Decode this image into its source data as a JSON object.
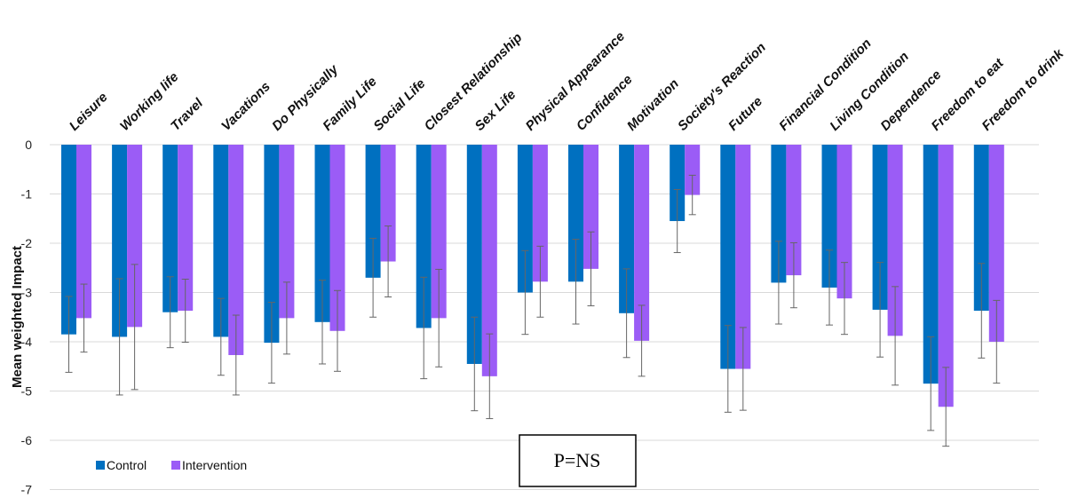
{
  "chart_data": {
    "type": "bar",
    "title": "",
    "xlabel": "",
    "ylabel": "Mean weighted Impact",
    "ylim": [
      -7,
      0
    ],
    "yticks": [
      0,
      -1,
      -2,
      -3,
      -4,
      -5,
      -6,
      -7
    ],
    "grid": true,
    "legend_position": "bottom-left",
    "categories": [
      "Leisure",
      "Working life",
      "Travel",
      "Vacations",
      "Do Physically",
      "Family Life",
      "Social Life",
      "Closest Relationship",
      "Sex Life",
      "Physical Appearance",
      "Confidence",
      "Motivation",
      "Society's Reaction",
      "Future",
      "Financial Condition",
      "Living Condition",
      "Dependence",
      "Freedom to eat",
      "Freedom to drink"
    ],
    "series": [
      {
        "name": "Control",
        "color": "#0070C0",
        "values": [
          -3.85,
          -3.9,
          -3.4,
          -3.9,
          -4.02,
          -3.6,
          -2.7,
          -3.72,
          -4.45,
          -3.0,
          -2.78,
          -3.42,
          -1.55,
          -4.55,
          -2.8,
          -2.9,
          -3.35,
          -4.85,
          -3.37
        ],
        "error": [
          0.77,
          1.18,
          0.72,
          0.78,
          0.82,
          0.85,
          0.8,
          1.03,
          0.95,
          0.85,
          0.86,
          0.9,
          0.64,
          0.88,
          0.84,
          0.76,
          0.96,
          0.95,
          0.96
        ]
      },
      {
        "name": "Intervention",
        "color": "#9B5CF6",
        "values": [
          -3.52,
          -3.7,
          -3.37,
          -4.27,
          -3.52,
          -3.78,
          -2.37,
          -3.52,
          -4.7,
          -2.78,
          -2.52,
          -3.98,
          -1.02,
          -4.55,
          -2.65,
          -3.12,
          -3.88,
          -5.32,
          -4.0
        ],
        "error": [
          0.69,
          1.27,
          0.64,
          0.81,
          0.73,
          0.82,
          0.72,
          0.99,
          0.86,
          0.72,
          0.75,
          0.72,
          0.4,
          0.84,
          0.66,
          0.73,
          1.0,
          0.8,
          0.84
        ]
      }
    ],
    "annotation": "P=NS"
  }
}
